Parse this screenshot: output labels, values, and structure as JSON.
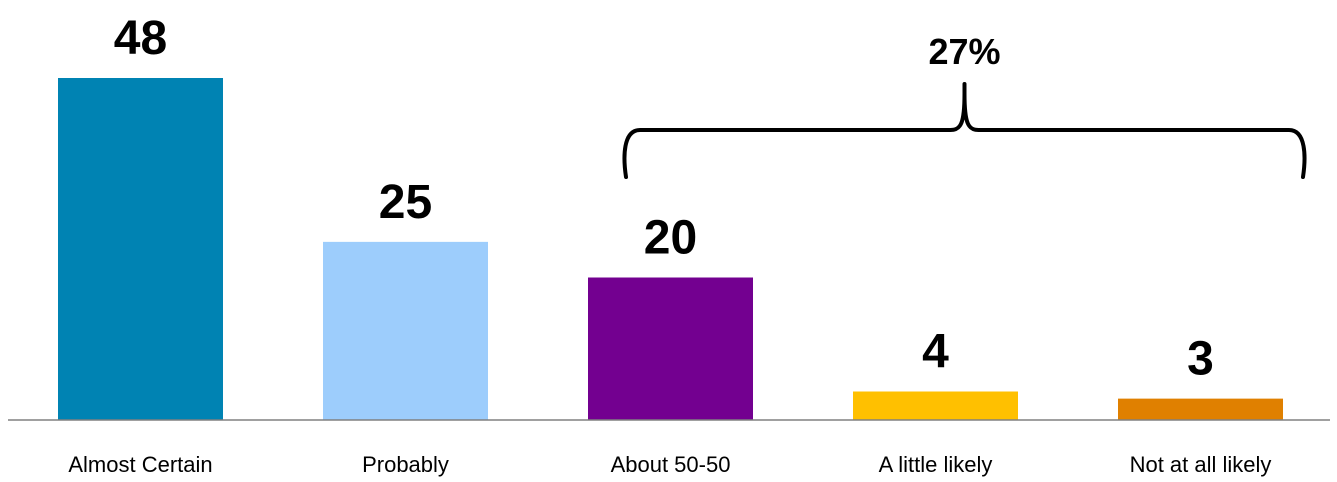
{
  "chart_data": {
    "type": "bar",
    "categories": [
      "Almost Certain",
      "Probably",
      "About 50-50",
      "A little likely",
      "Not at all likely"
    ],
    "values": [
      48,
      25,
      20,
      4,
      3
    ],
    "colors": [
      "#0083b3",
      "#9dcdfc",
      "#730090",
      "#ffc000",
      "#e08000"
    ],
    "title": "",
    "xlabel": "",
    "ylabel": "",
    "ylim": [
      0,
      48
    ],
    "grid": false,
    "annotations": [
      {
        "type": "bracket",
        "label": "27%",
        "spans_categories": [
          "About 50-50",
          "A little likely",
          "Not at all likely"
        ]
      }
    ]
  }
}
